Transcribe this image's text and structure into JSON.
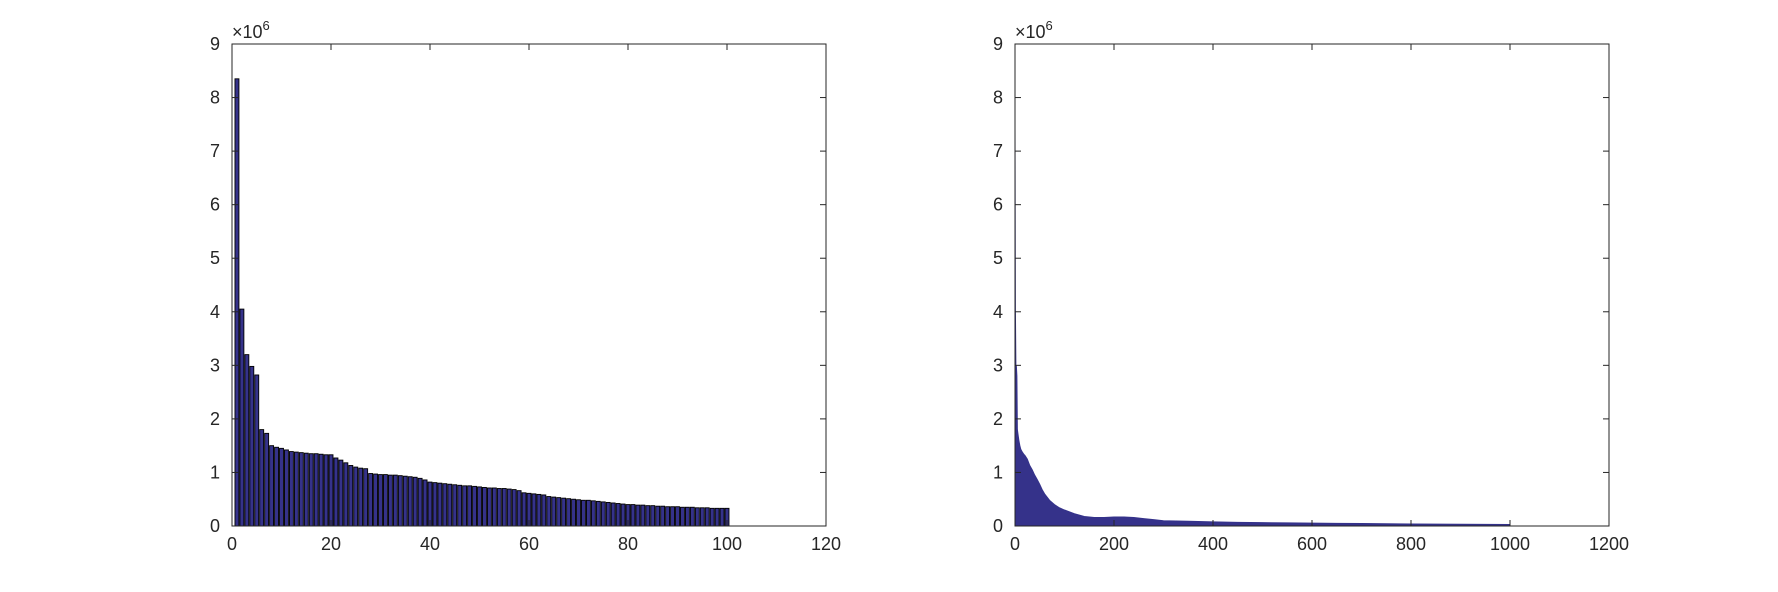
{
  "chart_data": [
    {
      "type": "bar",
      "xlim": [
        0,
        120
      ],
      "ylim": [
        0,
        9000000
      ],
      "x_ticks": [
        "0",
        "20",
        "40",
        "60",
        "80",
        "100",
        "120"
      ],
      "y_ticks": [
        "0",
        "1",
        "2",
        "3",
        "4",
        "5",
        "6",
        "7",
        "8",
        "9"
      ],
      "y_exponent": {
        "base": "×10",
        "power": "6"
      },
      "bar_color": "#35328a",
      "edge_color": "#000000",
      "x": [
        1,
        2,
        3,
        4,
        5,
        6,
        7,
        8,
        9,
        10,
        11,
        12,
        13,
        14,
        15,
        16,
        17,
        18,
        19,
        20,
        21,
        22,
        23,
        24,
        25,
        26,
        27,
        28,
        29,
        30,
        31,
        32,
        33,
        34,
        35,
        36,
        37,
        38,
        39,
        40,
        41,
        42,
        43,
        44,
        45,
        46,
        47,
        48,
        49,
        50,
        51,
        52,
        53,
        54,
        55,
        56,
        57,
        58,
        59,
        60,
        61,
        62,
        63,
        64,
        65,
        66,
        67,
        68,
        69,
        70,
        71,
        72,
        73,
        74,
        75,
        76,
        77,
        78,
        79,
        80,
        81,
        82,
        83,
        84,
        85,
        86,
        87,
        88,
        89,
        90,
        91,
        92,
        93,
        94,
        95,
        96,
        97,
        98,
        99,
        100
      ],
      "values": [
        8350000,
        4050000,
        3200000,
        2980000,
        2820000,
        1800000,
        1730000,
        1500000,
        1470000,
        1450000,
        1420000,
        1390000,
        1380000,
        1370000,
        1360000,
        1350000,
        1350000,
        1340000,
        1330000,
        1330000,
        1270000,
        1230000,
        1180000,
        1130000,
        1100000,
        1080000,
        1070000,
        980000,
        970000,
        960000,
        960000,
        950000,
        950000,
        940000,
        930000,
        920000,
        910000,
        890000,
        860000,
        820000,
        810000,
        800000,
        790000,
        780000,
        770000,
        760000,
        750000,
        750000,
        740000,
        730000,
        720000,
        710000,
        710000,
        700000,
        700000,
        690000,
        680000,
        660000,
        620000,
        610000,
        600000,
        590000,
        580000,
        550000,
        540000,
        530000,
        520000,
        510000,
        500000,
        490000,
        480000,
        480000,
        470000,
        460000,
        450000,
        440000,
        430000,
        420000,
        410000,
        400000,
        400000,
        390000,
        390000,
        380000,
        380000,
        370000,
        370000,
        360000,
        360000,
        360000,
        350000,
        350000,
        350000,
        340000,
        340000,
        340000,
        330000,
        330000,
        330000,
        330000
      ]
    },
    {
      "type": "area",
      "xlim": [
        0,
        1200
      ],
      "ylim": [
        0,
        9000000
      ],
      "x_ticks": [
        "0",
        "200",
        "400",
        "600",
        "800",
        "1000",
        "1200"
      ],
      "y_ticks": [
        "0",
        "1",
        "2",
        "3",
        "4",
        "5",
        "6",
        "7",
        "8",
        "9"
      ],
      "y_exponent": {
        "base": "×10",
        "power": "6"
      },
      "fill_color": "#35328a",
      "x": [
        0,
        1,
        2,
        3,
        4,
        5,
        6,
        8,
        10,
        12,
        15,
        18,
        20,
        25,
        30,
        35,
        40,
        45,
        50,
        55,
        60,
        70,
        80,
        90,
        100,
        120,
        140,
        160,
        180,
        200,
        220,
        240,
        260,
        280,
        300,
        350,
        400,
        450,
        500,
        550,
        600,
        650,
        700,
        750,
        800,
        850,
        900,
        950,
        1000
      ],
      "values": [
        8350000,
        4050000,
        3000000,
        2980000,
        2800000,
        1800000,
        1730000,
        1600000,
        1500000,
        1430000,
        1380000,
        1340000,
        1320000,
        1250000,
        1130000,
        1050000,
        950000,
        870000,
        780000,
        680000,
        600000,
        480000,
        400000,
        340000,
        300000,
        230000,
        180000,
        160000,
        160000,
        170000,
        170000,
        160000,
        140000,
        120000,
        100000,
        90000,
        80000,
        70000,
        65000,
        60000,
        55000,
        52000,
        48000,
        44000,
        40000,
        38000,
        35000,
        33000,
        30000
      ]
    }
  ]
}
